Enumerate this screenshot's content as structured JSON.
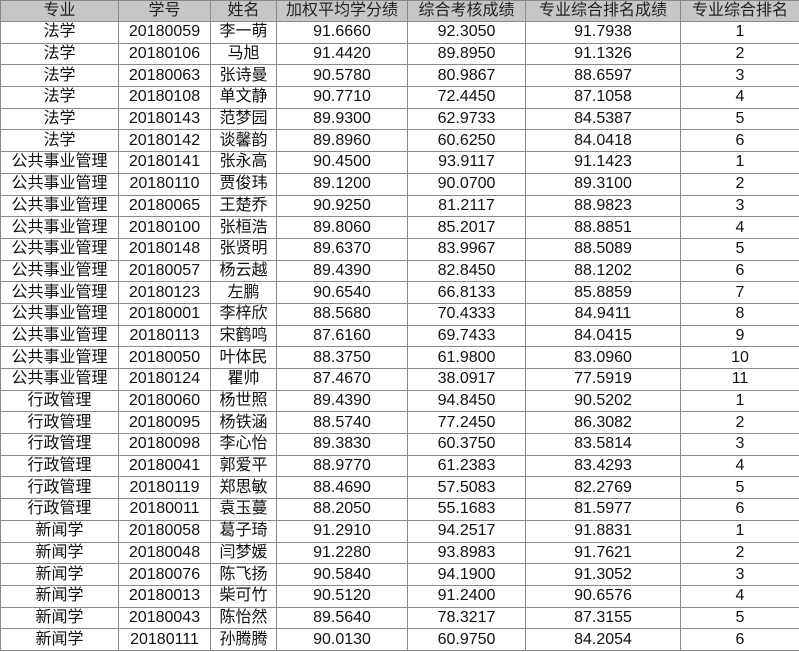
{
  "headers": [
    "专业",
    "学号",
    "姓名",
    "加权平均学分绩",
    "综合考核成绩",
    "专业综合排名成绩",
    "专业综合排名"
  ],
  "rows": [
    [
      "法学",
      "20180059",
      "李一萌",
      "91.6660",
      "92.3050",
      "91.7938",
      "1"
    ],
    [
      "法学",
      "20180106",
      "马旭",
      "91.4420",
      "89.8950",
      "91.1326",
      "2"
    ],
    [
      "法学",
      "20180063",
      "张诗曼",
      "90.5780",
      "80.9867",
      "88.6597",
      "3"
    ],
    [
      "法学",
      "20180108",
      "单文静",
      "90.7710",
      "72.4450",
      "87.1058",
      "4"
    ],
    [
      "法学",
      "20180143",
      "范梦园",
      "89.9300",
      "62.9733",
      "84.5387",
      "5"
    ],
    [
      "法学",
      "20180142",
      "谈馨韵",
      "89.8960",
      "60.6250",
      "84.0418",
      "6"
    ],
    [
      "公共事业管理",
      "20180141",
      "张永高",
      "90.4500",
      "93.9117",
      "91.1423",
      "1"
    ],
    [
      "公共事业管理",
      "20180110",
      "贾俊玮",
      "89.1200",
      "90.0700",
      "89.3100",
      "2"
    ],
    [
      "公共事业管理",
      "20180065",
      "王楚乔",
      "90.9250",
      "81.2117",
      "88.9823",
      "3"
    ],
    [
      "公共事业管理",
      "20180100",
      "张桓浩",
      "89.8060",
      "85.2017",
      "88.8851",
      "4"
    ],
    [
      "公共事业管理",
      "20180148",
      "张贤明",
      "89.6370",
      "83.9967",
      "88.5089",
      "5"
    ],
    [
      "公共事业管理",
      "20180057",
      "杨云越",
      "89.4390",
      "82.8450",
      "88.1202",
      "6"
    ],
    [
      "公共事业管理",
      "20180123",
      "左鹏",
      "90.6540",
      "66.8133",
      "85.8859",
      "7"
    ],
    [
      "公共事业管理",
      "20180001",
      "李梓欣",
      "88.5680",
      "70.4333",
      "84.9411",
      "8"
    ],
    [
      "公共事业管理",
      "20180113",
      "宋鹤鸣",
      "87.6160",
      "69.7433",
      "84.0415",
      "9"
    ],
    [
      "公共事业管理",
      "20180050",
      "叶体民",
      "88.3750",
      "61.9800",
      "83.0960",
      "10"
    ],
    [
      "公共事业管理",
      "20180124",
      "瞿帅",
      "87.4670",
      "38.0917",
      "77.5919",
      "11"
    ],
    [
      "行政管理",
      "20180060",
      "杨世照",
      "89.4390",
      "94.8450",
      "90.5202",
      "1"
    ],
    [
      "行政管理",
      "20180095",
      "杨铁涵",
      "88.5740",
      "77.2450",
      "86.3082",
      "2"
    ],
    [
      "行政管理",
      "20180098",
      "李心怡",
      "89.3830",
      "60.3750",
      "83.5814",
      "3"
    ],
    [
      "行政管理",
      "20180041",
      "郭爱平",
      "88.9770",
      "61.2383",
      "83.4293",
      "4"
    ],
    [
      "行政管理",
      "20180119",
      "郑思敏",
      "88.4690",
      "57.5083",
      "82.2769",
      "5"
    ],
    [
      "行政管理",
      "20180011",
      "袁玉蔓",
      "88.2050",
      "55.1683",
      "81.5977",
      "6"
    ],
    [
      "新闻学",
      "20180058",
      "葛子琦",
      "91.2910",
      "94.2517",
      "91.8831",
      "1"
    ],
    [
      "新闻学",
      "20180048",
      "闫梦媛",
      "91.2280",
      "93.8983",
      "91.7621",
      "2"
    ],
    [
      "新闻学",
      "20180076",
      "陈飞扬",
      "90.5840",
      "94.1900",
      "91.3052",
      "3"
    ],
    [
      "新闻学",
      "20180013",
      "柴可竹",
      "90.5120",
      "91.2400",
      "90.6576",
      "4"
    ],
    [
      "新闻学",
      "20180043",
      "陈怡然",
      "89.5640",
      "78.3217",
      "87.3155",
      "5"
    ],
    [
      "新闻学",
      "20180111",
      "孙腾腾",
      "90.0130",
      "60.9750",
      "84.2054",
      "6"
    ]
  ]
}
